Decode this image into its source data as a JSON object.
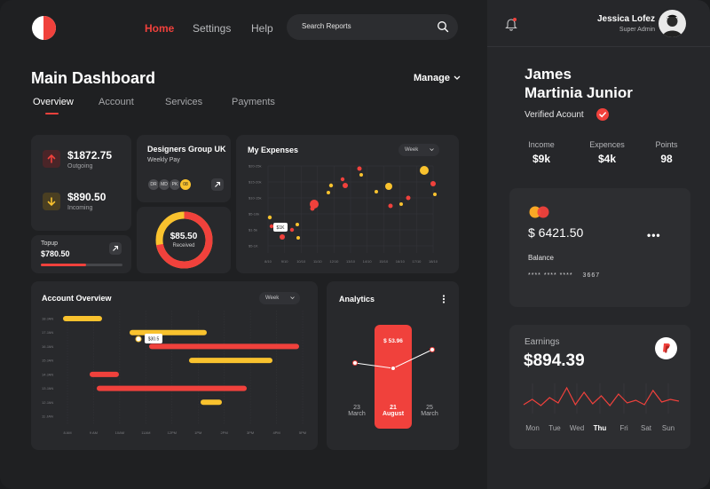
{
  "nav": {
    "home": "Home",
    "settings": "Settings",
    "help": "Help"
  },
  "search": {
    "placeholder": "Search Reports"
  },
  "page": {
    "title": "Main Dashboard",
    "manage": "Manage"
  },
  "tabs": [
    "Overview",
    "Account",
    "Services",
    "Payments"
  ],
  "summary": {
    "outgoing_amount": "$1872.75",
    "outgoing_label": "Outgoing",
    "incoming_amount": "$890.50",
    "incoming_label": "Incoming"
  },
  "topup": {
    "label": "Topup",
    "amount": "$780.50",
    "progress": 0.55
  },
  "group": {
    "title": "Designers Group UK",
    "subtitle": "Weekly Pay",
    "members": [
      "DR",
      "MD",
      "PK",
      "08"
    ]
  },
  "received": {
    "amount": "$85.50",
    "label": "Received",
    "fraction": 0.72
  },
  "expenses": {
    "title": "My Expenses",
    "period": "Week",
    "tooltip": "$1K",
    "chart_data": {
      "type": "scatter",
      "title": "My Expenses",
      "y_ticks": [
        "$20-25k",
        "$15-20k",
        "$10-15k",
        "$5-10k",
        "$1-5k",
        "$5-1K"
      ],
      "x_ticks": [
        "8/10",
        "9/10",
        "10/10",
        "11/10",
        "12/10",
        "13/10",
        "14/10",
        "15/10",
        "16/10",
        "17/10",
        "18/10"
      ]
    }
  },
  "account_overview": {
    "title": "Account Overview",
    "period": "Week",
    "tooltip": "$30.5",
    "chart_data": {
      "type": "bar",
      "rows": [
        "18 JAN",
        "17 JAN",
        "16 JAN",
        "15 JAN",
        "14 JAN",
        "13 JAN",
        "12 JAN",
        "11 JAN"
      ],
      "x_ticks": [
        "8 AM",
        "9 AM",
        "10AM",
        "11AM",
        "12PM",
        "1PM",
        "2PM",
        "3PM",
        "4PM",
        "5PM"
      ]
    }
  },
  "analytics": {
    "title": "Analytics",
    "value": "$ 53.96",
    "days": [
      {
        "num": "23",
        "month": "March"
      },
      {
        "num": "21",
        "month": "August"
      },
      {
        "num": "25",
        "month": "March"
      }
    ]
  },
  "user": {
    "name": "Jessica Lofez",
    "role": "Super Admin"
  },
  "profile": {
    "name_line1": "James",
    "name_line2": "Martinia Junior",
    "verified": "Verified Acount",
    "stats": [
      {
        "label": "Income",
        "value": "$9k"
      },
      {
        "label": "Expences",
        "value": "$4k"
      },
      {
        "label": "Points",
        "value": "98"
      }
    ]
  },
  "card": {
    "balance": "$ 6421.50",
    "balance_label": "Balance",
    "masked": "**** **** ****",
    "last4": "3667"
  },
  "earnings": {
    "label": "Earnings",
    "amount": "$894.39",
    "days": [
      "Mon",
      "Tue",
      "Wed",
      "Thu",
      "Fri",
      "Sat",
      "Sun"
    ],
    "active_day": "Thu"
  },
  "colors": {
    "accent": "#f0413c",
    "yellow": "#f9c22e",
    "background": "#1f2022",
    "card": "#28292c"
  }
}
